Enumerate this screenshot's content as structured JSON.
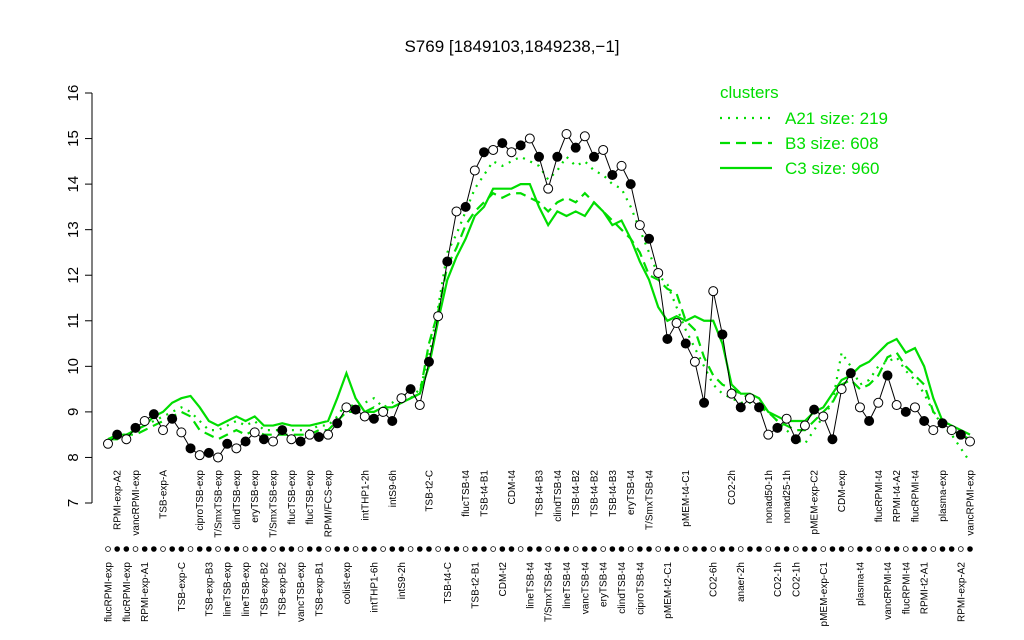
{
  "chart_data": {
    "type": "line",
    "title": "S769 [1849103,1849238,−1]",
    "categories": [
      "flucRPMI-exp",
      "RPMI-exp-A2",
      "flucRPMI-exp",
      "vancRPMI-exp",
      "RPMI-exp-A1",
      null,
      "TSB-exp-A",
      null,
      "TSB-exp-C",
      null,
      "ciproTSB-exp",
      "TSB-exp-B3",
      "T/SmxTSB-exp",
      "lineTSB-exp",
      "clindTSB-exp",
      "lineTSB-exp",
      "eryTSB-exp",
      "TSB-exp-B2",
      "T/SmxTSB-exp",
      "TSB-exp-B2",
      "flucTSB-exp",
      "vancTSB-exp",
      "flucTSB-exp",
      "TSB-exp-B1",
      "RPMI/FCS-exp",
      null,
      "colist-exp",
      null,
      "intTHP1-2h",
      "intTHP1-6h",
      null,
      "intS9-6h",
      "intS9-2h",
      null,
      null,
      "TSB-t2-C",
      null,
      "TSB-t4-C",
      null,
      "flucTSB-t4",
      "TSB-t2-B1",
      "TSB-t4-B1",
      null,
      "CDM-t2",
      "CDM-t4",
      null,
      "lineTSB-t4",
      "TSB-t4-B3",
      "T/SmxTSB-t4",
      "clindTSB-t4",
      "lineTSB-t4",
      "TSB-t4-B2",
      "vancTSB-t4",
      "TSB-t4-B2",
      "eryTSB-t4",
      "TSB-t4-B3",
      "clindTSB-t4",
      "eryTSB-t4",
      "ciproTSB-t4",
      "T/SmxTSB-t4",
      null,
      "pMEM-t2-C1",
      null,
      "pMEM-t4-C1",
      null,
      null,
      "CO2-6h",
      null,
      "CO2-2h",
      "anaer-2h",
      null,
      null,
      "nonad50-1h",
      "CO2-1h",
      "nonad25-1h",
      "CO2-1h",
      null,
      "pMEM-exp-C2",
      "pMEM-exp-C1",
      null,
      "CDM-exp",
      null,
      "plasma-t4",
      null,
      "flucRPMI-t4",
      "vancRPMI-t4",
      "RPMI-t4-A2",
      "flucRPMI-t4",
      "flucRPMI-t4",
      "RPMI-t2-A1",
      null,
      "plasma-exp",
      null,
      "RPMI-exp-A2",
      "vancRPMI-exp"
    ],
    "values": [
      8.3,
      8.5,
      8.4,
      8.65,
      8.8,
      8.95,
      8.6,
      8.85,
      8.55,
      8.2,
      8.05,
      8.1,
      8.0,
      8.3,
      8.2,
      8.35,
      8.55,
      8.4,
      8.35,
      8.6,
      8.4,
      8.35,
      8.5,
      8.45,
      8.5,
      8.75,
      9.1,
      9.05,
      8.9,
      8.85,
      9.0,
      8.8,
      9.3,
      9.5,
      9.15,
      10.1,
      11.1,
      12.3,
      13.4,
      13.5,
      14.3,
      14.7,
      14.75,
      14.9,
      14.7,
      14.85,
      15.0,
      14.6,
      13.9,
      14.6,
      15.1,
      14.8,
      15.05,
      14.6,
      14.75,
      14.2,
      14.4,
      14.0,
      13.1,
      12.8,
      12.05,
      10.6,
      10.95,
      10.5,
      10.1,
      9.2,
      11.65,
      10.7,
      9.4,
      9.1,
      9.3,
      9.1,
      8.5,
      8.65,
      8.85,
      8.4,
      8.7,
      9.05,
      8.9,
      8.4,
      9.5,
      9.85,
      9.1,
      8.8,
      9.2,
      9.8,
      9.15,
      9.0,
      9.1,
      8.8,
      8.6,
      8.75,
      8.6,
      8.5,
      8.35
    ],
    "color": "#000000",
    "series": [
      {
        "name": "A21 size: 219",
        "color": "#00dd00",
        "dash": "dotted",
        "values": [
          8.4,
          8.5,
          8.5,
          8.6,
          8.7,
          8.8,
          8.9,
          9.0,
          9.1,
          9.0,
          8.8,
          8.6,
          8.6,
          8.7,
          8.8,
          8.7,
          8.8,
          8.6,
          8.6,
          8.6,
          8.6,
          8.6,
          8.6,
          8.7,
          8.7,
          8.9,
          9.2,
          9.1,
          9.2,
          9.3,
          9.1,
          9.2,
          9.4,
          9.3,
          9.5,
          10.2,
          11.3,
          12.5,
          12.9,
          13.4,
          13.9,
          14.2,
          14.5,
          14.4,
          14.5,
          14.6,
          14.5,
          14.4,
          14.1,
          14.3,
          14.6,
          14.4,
          14.5,
          14.3,
          14.2,
          14.0,
          13.9,
          13.5,
          13.0,
          12.5,
          12.0,
          11.8,
          11.3,
          10.8,
          10.4,
          10.0,
          9.6,
          9.4,
          9.3,
          9.2,
          9.2,
          9.1,
          9.0,
          8.8,
          8.6,
          8.4,
          8.3,
          8.6,
          8.9,
          9.2,
          10.3,
          10.0,
          9.6,
          9.7,
          10.0,
          10.1,
          10.2,
          9.9,
          9.7,
          9.4,
          9.0,
          8.7,
          8.5,
          8.2,
          7.9
        ]
      },
      {
        "name": "B3 size: 608",
        "color": "#00dd00",
        "dash": "dashed",
        "values": [
          8.4,
          8.4,
          8.5,
          8.5,
          8.6,
          8.7,
          8.8,
          8.9,
          9.0,
          8.9,
          8.6,
          8.5,
          8.4,
          8.5,
          8.6,
          8.5,
          8.6,
          8.5,
          8.5,
          8.5,
          8.5,
          8.5,
          8.5,
          8.6,
          8.6,
          8.8,
          9.0,
          9.0,
          9.0,
          9.1,
          9.0,
          9.1,
          9.2,
          9.3,
          9.4,
          10.5,
          11.2,
          12.2,
          12.6,
          13.1,
          13.4,
          13.6,
          13.8,
          13.7,
          13.8,
          13.8,
          13.7,
          13.6,
          13.4,
          13.6,
          13.7,
          13.6,
          13.8,
          13.6,
          13.4,
          13.2,
          13.0,
          12.8,
          12.5,
          12.0,
          11.9,
          11.7,
          11.6,
          11.0,
          10.8,
          10.2,
          9.8,
          9.6,
          9.5,
          9.4,
          9.3,
          9.2,
          9.0,
          8.8,
          8.7,
          8.6,
          8.6,
          8.8,
          9.0,
          9.2,
          9.6,
          9.7,
          9.5,
          9.6,
          9.8,
          10.2,
          10.3,
          10.0,
          9.8,
          9.6,
          9.0,
          8.8,
          8.6,
          8.5,
          8.4
        ]
      },
      {
        "name": "C3 size: 960",
        "color": "#00dd00",
        "dash": "solid",
        "values": [
          8.4,
          8.5,
          8.5,
          8.6,
          8.7,
          8.9,
          9.0,
          9.2,
          9.3,
          9.35,
          9.1,
          8.8,
          8.7,
          8.8,
          8.9,
          8.8,
          8.9,
          8.7,
          8.7,
          8.75,
          8.7,
          8.7,
          8.7,
          8.75,
          8.8,
          9.3,
          9.85,
          9.3,
          9.0,
          9.0,
          9.1,
          9.1,
          9.2,
          9.3,
          9.4,
          10.0,
          11.0,
          11.9,
          12.4,
          12.8,
          13.3,
          13.5,
          13.9,
          13.9,
          13.9,
          14.0,
          14.0,
          13.5,
          13.1,
          13.4,
          13.3,
          13.4,
          13.3,
          13.6,
          13.4,
          13.1,
          13.2,
          12.8,
          12.3,
          11.9,
          11.3,
          11.0,
          11.1,
          11.0,
          11.1,
          11.0,
          11.0,
          10.5,
          9.6,
          9.4,
          9.4,
          9.3,
          9.0,
          8.9,
          8.8,
          8.8,
          8.8,
          9.0,
          9.1,
          9.4,
          9.7,
          9.8,
          10.0,
          10.1,
          10.3,
          10.5,
          10.6,
          10.3,
          10.4,
          10.0,
          9.3,
          8.8,
          8.7,
          8.6,
          8.5
        ]
      }
    ],
    "legend_title": "clusters",
    "legend": "top-right",
    "ylim": [
      7,
      16
    ],
    "yticks": [
      7,
      8,
      9,
      10,
      11,
      12,
      13,
      14,
      15,
      16
    ]
  }
}
